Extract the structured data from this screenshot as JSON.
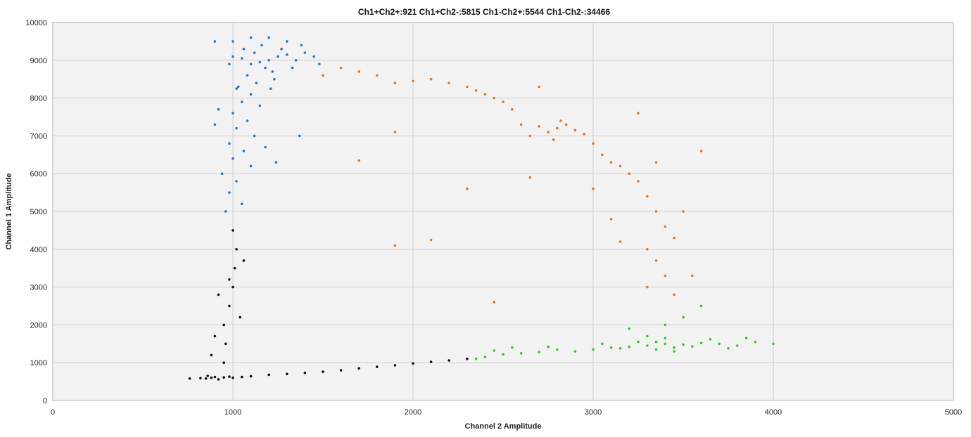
{
  "chart_data": {
    "type": "scatter",
    "title": "Ch1+Ch2+:921  Ch1+Ch2-:5815  Ch1-Ch2+:5544  Ch1-Ch2-:34466",
    "xlabel": "Channel 2 Amplitude",
    "ylabel": "Channel 1 Amplitude",
    "xlim": [
      0,
      5000
    ],
    "ylim": [
      0,
      10000
    ],
    "xticks": [
      "0",
      "1000",
      "2000",
      "3000",
      "4000",
      "5000"
    ],
    "yticks": [
      "0",
      "1000",
      "2000",
      "3000",
      "4000",
      "5000",
      "6000",
      "7000",
      "8000",
      "9000",
      "10000"
    ],
    "grid": true,
    "plot_background": "#f2f2f2",
    "series": [
      {
        "cluster": "Ch1+Ch2-",
        "color": "#1f78d1",
        "points": [
          [
            1150,
            8950
          ],
          [
            1200,
            9000
          ],
          [
            1100,
            8900
          ],
          [
            1250,
            9100
          ],
          [
            1180,
            8800
          ],
          [
            1050,
            9050
          ],
          [
            1300,
            9150
          ],
          [
            1120,
            9200
          ],
          [
            1220,
            8700
          ],
          [
            1080,
            8600
          ],
          [
            1000,
            9100
          ],
          [
            1350,
            9000
          ],
          [
            1270,
            9300
          ],
          [
            1160,
            9400
          ],
          [
            1060,
            9300
          ],
          [
            980,
            8900
          ],
          [
            1400,
            9200
          ],
          [
            1330,
            8800
          ],
          [
            1230,
            8500
          ],
          [
            1130,
            8400
          ],
          [
            1030,
            8300
          ],
          [
            1100,
            8100
          ],
          [
            1050,
            7900
          ],
          [
            1150,
            7800
          ],
          [
            1000,
            7600
          ],
          [
            1080,
            7400
          ],
          [
            1020,
            7200
          ],
          [
            1120,
            7000
          ],
          [
            980,
            6800
          ],
          [
            1060,
            6600
          ],
          [
            1000,
            6400
          ],
          [
            1100,
            6200
          ],
          [
            940,
            6000
          ],
          [
            1020,
            5800
          ],
          [
            980,
            5500
          ],
          [
            1050,
            5200
          ],
          [
            960,
            5000
          ],
          [
            920,
            7700
          ],
          [
            900,
            7300
          ],
          [
            1450,
            9100
          ],
          [
            1480,
            8900
          ],
          [
            1380,
            9400
          ],
          [
            1300,
            9500
          ],
          [
            1200,
            9600
          ],
          [
            1100,
            9600
          ],
          [
            1000,
            9500
          ],
          [
            900,
            9500
          ],
          [
            1240,
            6300
          ],
          [
            1180,
            6700
          ],
          [
            1210,
            8250
          ],
          [
            1020,
            8250
          ],
          [
            1370,
            7000
          ]
        ]
      },
      {
        "cluster": "Ch1+Ch2+",
        "color": "#e8741c",
        "points": [
          [
            2800,
            7200
          ],
          [
            2750,
            7100
          ],
          [
            2850,
            7300
          ],
          [
            2700,
            7250
          ],
          [
            2900,
            7150
          ],
          [
            2650,
            7000
          ],
          [
            2950,
            7050
          ],
          [
            2780,
            6900
          ],
          [
            2820,
            7400
          ],
          [
            2600,
            7300
          ],
          [
            3000,
            6800
          ],
          [
            3050,
            6500
          ],
          [
            3100,
            6300
          ],
          [
            3150,
            6200
          ],
          [
            3200,
            6000
          ],
          [
            2550,
            7700
          ],
          [
            2500,
            7900
          ],
          [
            2450,
            8000
          ],
          [
            2400,
            8100
          ],
          [
            2350,
            8200
          ],
          [
            2300,
            8300
          ],
          [
            2200,
            8400
          ],
          [
            2100,
            8500
          ],
          [
            2000,
            8450
          ],
          [
            1900,
            8400
          ],
          [
            1800,
            8600
          ],
          [
            1700,
            8700
          ],
          [
            1600,
            8800
          ],
          [
            1500,
            8600
          ],
          [
            3250,
            5800
          ],
          [
            3300,
            5400
          ],
          [
            3350,
            5000
          ],
          [
            3400,
            4600
          ],
          [
            3450,
            4300
          ],
          [
            3300,
            4000
          ],
          [
            3350,
            3700
          ],
          [
            3400,
            3300
          ],
          [
            3300,
            3000
          ],
          [
            3450,
            2800
          ],
          [
            3550,
            3300
          ],
          [
            3600,
            6600
          ],
          [
            3500,
            5000
          ],
          [
            3150,
            4200
          ],
          [
            3100,
            4800
          ],
          [
            2450,
            2600
          ],
          [
            2100,
            4250
          ],
          [
            1900,
            4100
          ],
          [
            1700,
            6350
          ],
          [
            1900,
            7100
          ],
          [
            2300,
            5600
          ],
          [
            2650,
            5900
          ],
          [
            3000,
            5600
          ],
          [
            3350,
            6300
          ],
          [
            3250,
            7600
          ],
          [
            2700,
            8300
          ]
        ]
      },
      {
        "cluster": "Ch1-Ch2+",
        "color": "#2ecc1f",
        "points": [
          [
            3300,
            1450
          ],
          [
            3400,
            1500
          ],
          [
            3500,
            1480
          ],
          [
            3200,
            1420
          ],
          [
            3600,
            1520
          ],
          [
            3350,
            1550
          ],
          [
            3450,
            1400
          ],
          [
            3700,
            1500
          ],
          [
            3250,
            1550
          ],
          [
            3550,
            1430
          ],
          [
            3150,
            1380
          ],
          [
            3800,
            1450
          ],
          [
            3100,
            1400
          ],
          [
            3000,
            1350
          ],
          [
            2900,
            1300
          ],
          [
            2800,
            1350
          ],
          [
            2700,
            1280
          ],
          [
            2600,
            1250
          ],
          [
            2500,
            1220
          ],
          [
            2400,
            1150
          ],
          [
            2350,
            1100
          ],
          [
            3900,
            1550
          ],
          [
            4000,
            1500
          ],
          [
            3850,
            1650
          ],
          [
            3650,
            1620
          ],
          [
            3050,
            1500
          ],
          [
            3750,
            1380
          ],
          [
            3400,
            1650
          ],
          [
            3300,
            1700
          ],
          [
            3500,
            2200
          ],
          [
            3600,
            2500
          ],
          [
            3400,
            2000
          ],
          [
            3200,
            1900
          ],
          [
            2550,
            1400
          ],
          [
            2450,
            1320
          ],
          [
            2750,
            1420
          ],
          [
            3350,
            1350
          ],
          [
            3450,
            1300
          ]
        ]
      },
      {
        "cluster": "Ch1-Ch2-",
        "color": "#111111",
        "points": [
          [
            880,
            600
          ],
          [
            900,
            620
          ],
          [
            850,
            580
          ],
          [
            950,
            610
          ],
          [
            820,
            590
          ],
          [
            980,
            630
          ],
          [
            760,
            580
          ],
          [
            1000,
            600
          ],
          [
            920,
            560
          ],
          [
            860,
            650
          ],
          [
            1050,
            620
          ],
          [
            1100,
            640
          ],
          [
            1200,
            680
          ],
          [
            1300,
            700
          ],
          [
            1400,
            730
          ],
          [
            1500,
            760
          ],
          [
            1600,
            800
          ],
          [
            1700,
            850
          ],
          [
            1800,
            890
          ],
          [
            1900,
            930
          ],
          [
            2000,
            980
          ],
          [
            2100,
            1020
          ],
          [
            2200,
            1060
          ],
          [
            2300,
            1100
          ],
          [
            950,
            1000
          ],
          [
            960,
            1500
          ],
          [
            950,
            2000
          ],
          [
            980,
            2500
          ],
          [
            1000,
            3000
          ],
          [
            1010,
            3500
          ],
          [
            1020,
            4000
          ],
          [
            1000,
            4500
          ],
          [
            980,
            3200
          ],
          [
            920,
            2800
          ],
          [
            880,
            1200
          ],
          [
            900,
            1700
          ],
          [
            1040,
            2200
          ],
          [
            1060,
            3700
          ]
        ]
      }
    ]
  }
}
